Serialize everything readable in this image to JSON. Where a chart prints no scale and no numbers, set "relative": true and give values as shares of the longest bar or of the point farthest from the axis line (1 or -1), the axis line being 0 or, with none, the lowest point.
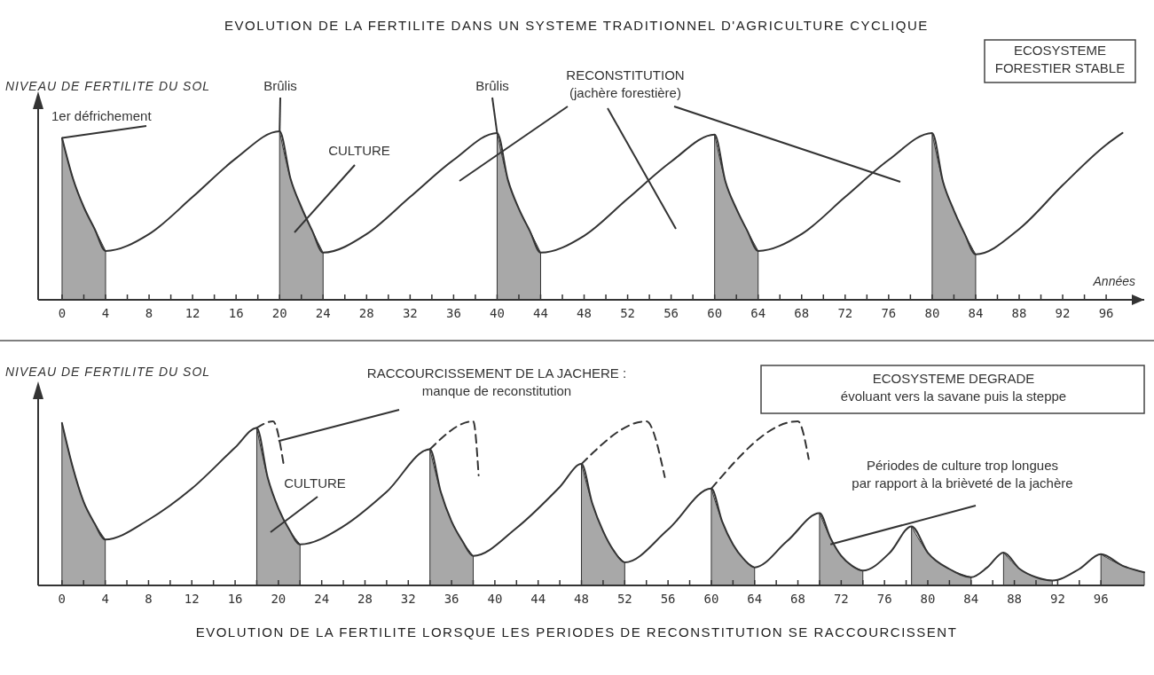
{
  "chart_data": [
    {
      "type": "line",
      "title": "EVOLUTION DE LA FERTILITE DANS UN SYSTEME TRADITIONNEL D'AGRICULTURE CYCLIQUE",
      "ylabel": "NIVEAU DE FERTILITE DU SOL",
      "xlabel": "Années",
      "relative": true,
      "xlim": [
        -2.2,
        99.5
      ],
      "xticks": [
        0,
        {
          "value": 2,
          "label": null
        },
        4,
        {
          "value": 6,
          "label": null
        },
        8,
        {
          "value": 10,
          "label": null
        },
        12,
        {
          "value": 14,
          "label": null
        },
        16,
        {
          "value": 18,
          "label": null
        },
        20,
        {
          "value": 22,
          "label": null
        },
        24,
        {
          "value": 26,
          "label": null
        },
        28,
        {
          "value": 30,
          "label": null
        },
        32,
        {
          "value": 34,
          "label": null
        },
        36,
        {
          "value": 38,
          "label": null
        },
        40,
        {
          "value": 42,
          "label": null
        },
        44,
        {
          "value": 46,
          "label": null
        },
        48,
        {
          "value": 50,
          "label": null
        },
        52,
        {
          "value": 54,
          "label": null
        },
        56,
        {
          "value": 58,
          "label": null
        },
        60,
        {
          "value": 62,
          "label": null
        },
        64,
        {
          "value": 66,
          "label": null
        },
        68,
        {
          "value": 70,
          "label": null
        },
        72,
        {
          "value": 74,
          "label": null
        },
        76,
        {
          "value": 78,
          "label": null
        },
        80,
        {
          "value": 82,
          "label": null
        },
        84,
        {
          "value": 86,
          "label": null
        },
        88,
        {
          "value": 90,
          "label": null
        },
        92,
        {
          "value": 94,
          "label": null
        },
        96
      ],
      "series": [
        {
          "type": "area",
          "color": "#a8a8a8",
          "x": [
            0,
            1,
            2,
            3,
            4,
            10,
            20,
            21,
            22,
            23,
            24,
            30,
            40,
            41,
            42,
            43,
            44,
            50,
            60,
            61,
            62,
            63,
            64,
            70,
            80,
            81,
            82,
            83,
            84
          ],
          "values": [
            0.96,
            0.72,
            0.55,
            0.42,
            0.29,
            null,
            1.0,
            0.72,
            0.55,
            0.41,
            0.28,
            null,
            0.99,
            0.71,
            0.54,
            0.41,
            0.28,
            null,
            0.98,
            0.7,
            0.54,
            0.41,
            0.29,
            null,
            0.99,
            0.7,
            0.53,
            0.39,
            0.27
          ]
        },
        {
          "color": "#333333",
          "line_style": "solid",
          "x": [
            0,
            1,
            2,
            3,
            4,
            8,
            12,
            16,
            20,
            21,
            22,
            23,
            24,
            28,
            32,
            36,
            40,
            41,
            42,
            43,
            44,
            48,
            52,
            56,
            60,
            61,
            62,
            63,
            64,
            68,
            72,
            76,
            80,
            81,
            82,
            83,
            84,
            88,
            92,
            96,
            97.5
          ],
          "values": [
            0.96,
            0.72,
            0.55,
            0.42,
            0.29,
            0.39,
            0.61,
            0.84,
            1.0,
            0.72,
            0.55,
            0.41,
            0.28,
            0.39,
            0.61,
            0.83,
            0.99,
            0.71,
            0.54,
            0.41,
            0.28,
            0.38,
            0.6,
            0.82,
            0.98,
            0.7,
            0.54,
            0.41,
            0.29,
            0.39,
            0.61,
            0.83,
            0.99,
            0.7,
            0.53,
            0.39,
            0.27,
            0.42,
            0.68,
            0.92,
            0.99
          ]
        }
      ],
      "annotations": [
        {
          "text": "1er défrichement",
          "x": 0,
          "y": 0.96
        },
        {
          "text": "Brûlis",
          "x": 20,
          "y": 1.0
        },
        {
          "text": "Brûlis",
          "x": 40,
          "y": 0.99
        },
        "CULTURE",
        "RECONSTITUTION\n(jachère forestière)",
        "ECOSYSTEME\nFORESTIER STABLE"
      ]
    },
    {
      "type": "line",
      "title": "EVOLUTION DE LA FERTILITE LORSQUE LES PERIODES DE RECONSTITUTION SE RACCOURCISSENT",
      "ylabel": "NIVEAU DE FERTILITE DU SOL",
      "relative": true,
      "xlim": [
        -2.2,
        100
      ],
      "xticks": [
        0,
        {
          "value": 2,
          "label": null
        },
        4,
        {
          "value": 6,
          "label": null
        },
        8,
        {
          "value": 10,
          "label": null
        },
        12,
        {
          "value": 14,
          "label": null
        },
        16,
        {
          "value": 18,
          "label": null
        },
        20,
        {
          "value": 22,
          "label": null
        },
        24,
        {
          "value": 26,
          "label": null
        },
        28,
        {
          "value": 30,
          "label": null
        },
        32,
        {
          "value": 34,
          "label": null
        },
        36,
        {
          "value": 38,
          "label": null
        },
        40,
        {
          "value": 42,
          "label": null
        },
        44,
        {
          "value": 46,
          "label": null
        },
        48,
        {
          "value": 50,
          "label": null
        },
        52,
        {
          "value": 54,
          "label": null
        },
        56,
        {
          "value": 58,
          "label": null
        },
        60,
        {
          "value": 62,
          "label": null
        },
        64,
        {
          "value": 66,
          "label": null
        },
        68,
        {
          "value": 70,
          "label": null
        },
        72,
        {
          "value": 74,
          "label": null
        },
        76,
        {
          "value": 78,
          "label": null
        },
        80,
        {
          "value": 82,
          "label": null
        },
        84,
        {
          "value": 86,
          "label": null
        },
        88,
        {
          "value": 90,
          "label": null
        },
        92,
        {
          "value": 94,
          "label": null
        },
        96
      ],
      "series": [
        {
          "type": "area",
          "color": "#a8a8a8",
          "x": [
            0,
            1,
            2,
            3,
            4,
            10,
            18,
            19,
            20,
            21,
            22,
            28,
            34,
            35,
            36,
            37,
            38,
            44,
            48,
            49,
            50,
            51,
            52,
            56,
            60,
            61,
            62,
            63,
            64,
            67,
            70,
            71,
            72,
            73,
            74,
            76,
            78.5,
            80,
            82,
            84,
            85.5,
            87,
            88.5,
            90,
            91.5,
            94,
            96,
            98,
            100
          ],
          "values": [
            0.99,
            0.72,
            0.51,
            0.38,
            0.28,
            null,
            0.96,
            0.66,
            0.47,
            0.34,
            0.25,
            null,
            0.83,
            0.57,
            0.39,
            0.27,
            0.18,
            null,
            0.74,
            0.5,
            0.33,
            0.21,
            0.14,
            null,
            0.59,
            0.39,
            0.25,
            0.16,
            0.11,
            null,
            0.44,
            0.29,
            0.18,
            0.12,
            0.09,
            null,
            0.36,
            0.2,
            0.1,
            0.05,
            null,
            0.2,
            0.1,
            0.05,
            0.03,
            null,
            0.19,
            0.12,
            0.08
          ]
        },
        {
          "color": "#333333",
          "line_style": "solid",
          "x": [
            0,
            1,
            2,
            3,
            4,
            8,
            12,
            16,
            18,
            19,
            20,
            21,
            22,
            26,
            30,
            34,
            35,
            36,
            37,
            38,
            42,
            46,
            48,
            49,
            50,
            51,
            52,
            56,
            60,
            61,
            62,
            63,
            64,
            67,
            70,
            71,
            72,
            73,
            74,
            76.5,
            78.5,
            80,
            82,
            84,
            85.5,
            87,
            88.5,
            90,
            91.5,
            94,
            96,
            98,
            100
          ],
          "values": [
            0.99,
            0.72,
            0.51,
            0.38,
            0.28,
            0.4,
            0.59,
            0.84,
            0.96,
            0.66,
            0.47,
            0.34,
            0.25,
            0.36,
            0.57,
            0.83,
            0.57,
            0.39,
            0.27,
            0.18,
            0.35,
            0.6,
            0.74,
            0.5,
            0.33,
            0.21,
            0.14,
            0.34,
            0.59,
            0.39,
            0.25,
            0.16,
            0.11,
            0.27,
            0.44,
            0.29,
            0.18,
            0.12,
            0.09,
            0.2,
            0.36,
            0.2,
            0.1,
            0.05,
            0.11,
            0.2,
            0.1,
            0.05,
            0.03,
            0.1,
            0.19,
            0.12,
            0.08
          ]
        },
        {
          "color": "#333333",
          "line_style": "dashed",
          "x": [
            18,
            19.5,
            20.5,
            27,
            34,
            38,
            38.5,
            44,
            48,
            54,
            55.7,
            58,
            60,
            68,
            69
          ],
          "values": [
            0.96,
            1.0,
            0.73,
            null,
            0.83,
            1.0,
            0.67,
            null,
            0.74,
            1.0,
            0.66,
            null,
            0.59,
            1.0,
            0.77
          ]
        }
      ],
      "annotations": [
        {
          "text": "RACCOURCISSEMENT DE LA JACHERE :\nmanque de reconstitution",
          "x": 20,
          "y": 0.88
        },
        "CULTURE",
        "ECOSYSTEME DEGRADE\névoluant vers la savane puis la steppe",
        {
          "text": "Périodes de culture trop longues\npar rapport à la brièveté de la jachère",
          "x": 71,
          "y": 0.25
        }
      ]
    }
  ]
}
